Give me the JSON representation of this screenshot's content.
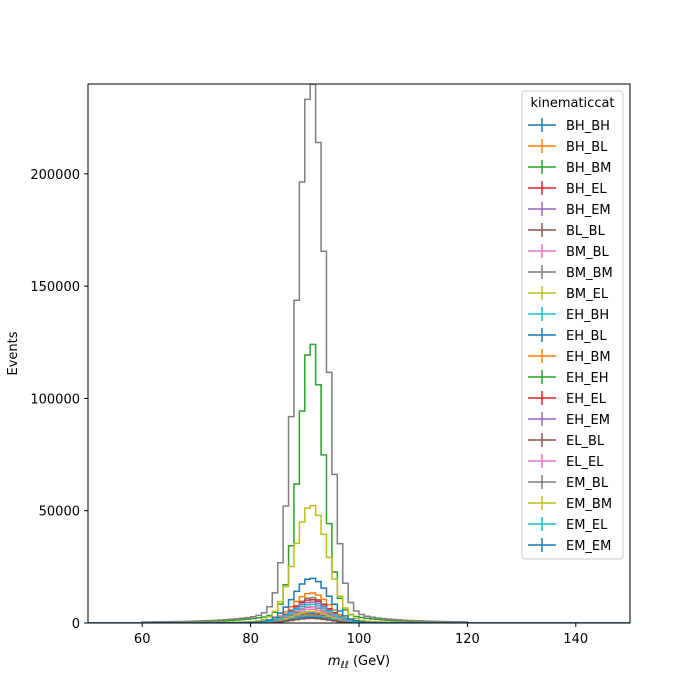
{
  "chart_data": {
    "type": "histogram-step",
    "xlabel": "m_{ℓℓ} (GeV)",
    "xlabel_main": "m",
    "xlabel_sub": "ℓℓ",
    "xlabel_unit": " (GeV)",
    "ylabel": "Events",
    "xlim": [
      50,
      150
    ],
    "ylim": [
      0,
      240000
    ],
    "x_ticks": [
      60,
      80,
      100,
      120,
      140
    ],
    "y_ticks": [
      0,
      50000,
      100000,
      150000,
      200000
    ],
    "legend_title": "kinematiccat",
    "legend_location": "upper right",
    "bins": {
      "start": 60,
      "end": 120,
      "width": 1
    },
    "series": [
      {
        "name": "BH_BH",
        "color": "#1f77b4",
        "peak": 4000,
        "sigma": 3.0,
        "tail": 0.03
      },
      {
        "name": "BH_BL",
        "color": "#ff7f0e",
        "peak": 3500,
        "sigma": 3.0,
        "tail": 0.03
      },
      {
        "name": "BH_BM",
        "color": "#2ca02c",
        "peak": 7000,
        "sigma": 3.0,
        "tail": 0.03
      },
      {
        "name": "BH_EL",
        "color": "#d62728",
        "peak": 2500,
        "sigma": 3.2,
        "tail": 0.03
      },
      {
        "name": "BH_EM",
        "color": "#9467bd",
        "peak": 4500,
        "sigma": 3.2,
        "tail": 0.03
      },
      {
        "name": "BL_BL",
        "color": "#8c564b",
        "peak": 3000,
        "sigma": 3.0,
        "tail": 0.03
      },
      {
        "name": "BM_BL",
        "color": "#e377c2",
        "peak": 6000,
        "sigma": 3.0,
        "tail": 0.03
      },
      {
        "name": "BM_BM",
        "color": "#7f7f7f",
        "peak": 11000,
        "sigma": 3.0,
        "tail": 0.03
      },
      {
        "name": "BM_EL",
        "color": "#bcbd22",
        "peak": 5000,
        "sigma": 3.2,
        "tail": 0.03
      },
      {
        "name": "EH_BH",
        "color": "#17becf",
        "peak": 3000,
        "sigma": 3.2,
        "tail": 0.03
      },
      {
        "name": "EH_BL",
        "color": "#1f77b4",
        "peak": 2500,
        "sigma": 3.3,
        "tail": 0.03
      },
      {
        "name": "EH_BM",
        "color": "#ff7f0e",
        "peak": 13000,
        "sigma": 3.3,
        "tail": 0.03
      },
      {
        "name": "EH_EH",
        "color": "#2ca02c",
        "peak": 117000,
        "sigma": 2.2,
        "tail": 0.07
      },
      {
        "name": "EH_EL",
        "color": "#d62728",
        "peak": 10000,
        "sigma": 3.3,
        "tail": 0.04
      },
      {
        "name": "EH_EM",
        "color": "#9467bd",
        "peak": 9000,
        "sigma": 3.3,
        "tail": 0.04
      },
      {
        "name": "EL_BL",
        "color": "#8c564b",
        "peak": 2000,
        "sigma": 3.3,
        "tail": 0.03
      },
      {
        "name": "EL_EL",
        "color": "#e377c2",
        "peak": 7000,
        "sigma": 3.4,
        "tail": 0.04
      },
      {
        "name": "EM_BL",
        "color": "#7f7f7f",
        "peak": 230000,
        "sigma": 2.6,
        "tail": 0.05
      },
      {
        "name": "EM_BM",
        "color": "#bcbd22",
        "peak": 50000,
        "sigma": 3.0,
        "tail": 0.05
      },
      {
        "name": "EM_EL",
        "color": "#17becf",
        "peak": 8000,
        "sigma": 3.4,
        "tail": 0.04
      },
      {
        "name": "EM_EM",
        "color": "#1f77b4",
        "peak": 19000,
        "sigma": 3.2,
        "tail": 0.05
      }
    ]
  }
}
